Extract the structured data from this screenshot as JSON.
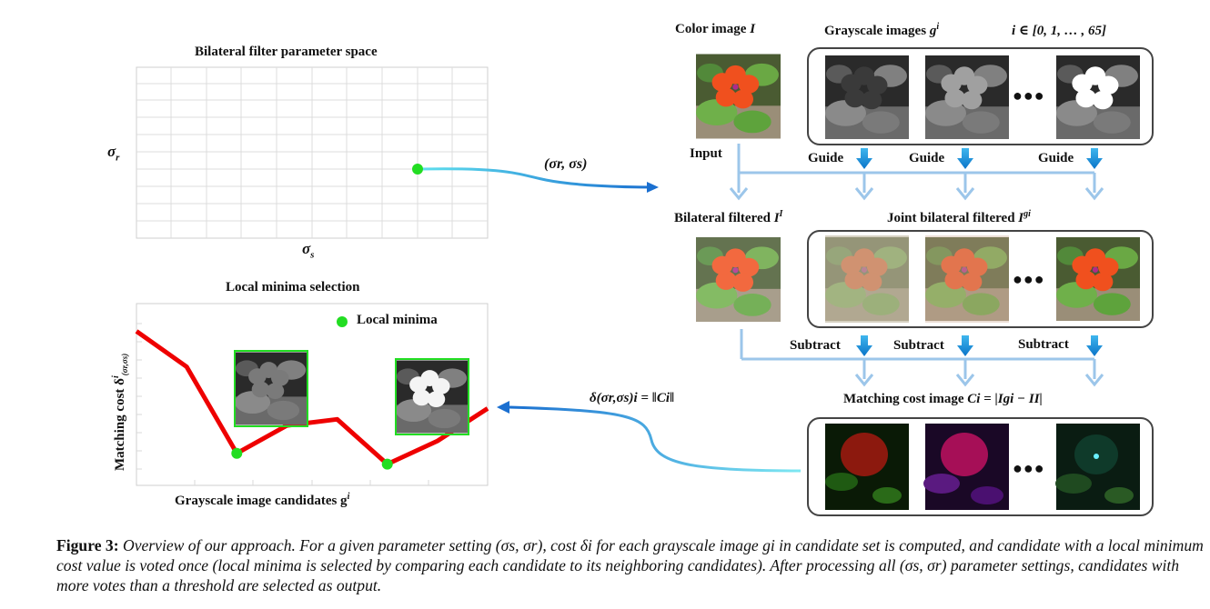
{
  "param_space": {
    "title": "Bilateral filter parameter space",
    "y_label": "σ",
    "y_sub": "r",
    "x_label": "σ",
    "x_sub": "s",
    "arrow_label": "(σr, σs)"
  },
  "local_minima": {
    "title": "Local minima  selection",
    "legend": "Local minima",
    "y_label": "Matching  cost  δ",
    "y_sub": "(σr,σs)",
    "y_sup": "i",
    "x_label": "Grayscale image candidates  g",
    "x_sup": "i",
    "arrow_label": "δ(σr,σs)i = ‖Ci‖",
    "chart_data": {
      "type": "line",
      "x": [
        1,
        2,
        3,
        4,
        5,
        6,
        7,
        8
      ],
      "y": [
        0.88,
        0.65,
        0.09,
        0.27,
        0.31,
        0.02,
        0.17,
        0.38
      ],
      "local_minima_x": [
        3,
        6
      ],
      "line_color": "#ee0000",
      "marker_color": "#22dd22"
    }
  },
  "top_row": {
    "color_label": "Color image",
    "color_var": "I",
    "gray_label": "Grayscale images",
    "gray_var": "g",
    "gray_sup": "i",
    "range_label": "i ∈ [0, 1, … , 65]",
    "input_label": "Input",
    "guide_label": "Guide"
  },
  "mid_row": {
    "bilateral_label": "Bilateral filtered",
    "bilateral_var": "I",
    "bilateral_sup": "I",
    "joint_label": "Joint bilateral filtered",
    "joint_var": "I",
    "joint_sup": "gi",
    "subtract_label": "Subtract"
  },
  "bottom_row": {
    "cost_label": "Matching cost image",
    "cost_formula": "Ci = |Igi − II|"
  },
  "ellipsis": "●●●",
  "caption": {
    "head": "Figure 3:",
    "body": "Overview of our approach. For a given parameter setting (σs, σr), cost δi for each grayscale image gi in candidate set is computed, and candidate with a local minimum cost value is voted once (local minima is selected by comparing each candidate to its neighboring candidates). After processing all (σs, σr) parameter settings, candidates with more votes than a threshold are selected as output."
  }
}
